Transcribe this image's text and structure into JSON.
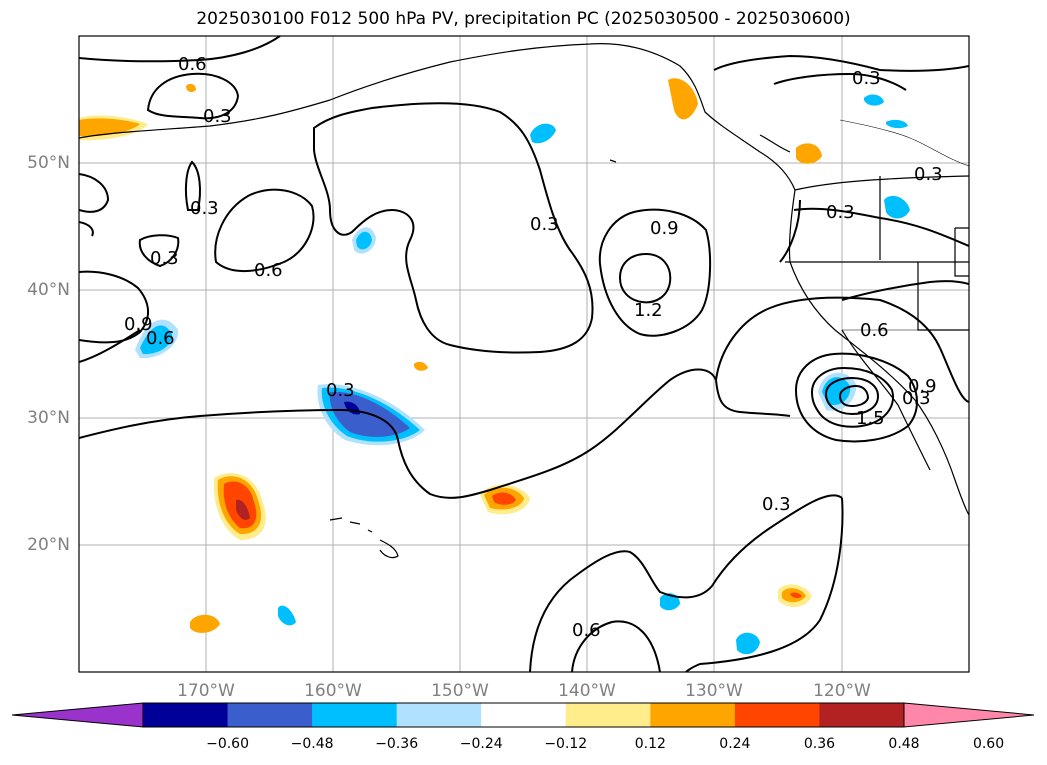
{
  "title": "2025030100 F012 500 hPa PV, precipitation PC (2025030500 - 2025030600)",
  "map": {
    "lon_range": [
      -180,
      -110
    ],
    "lat_range": [
      10,
      60
    ],
    "lat_ticks": [
      {
        "value": 20,
        "label": "20°N"
      },
      {
        "value": 30,
        "label": "30°N"
      },
      {
        "value": 40,
        "label": "40°N"
      },
      {
        "value": 50,
        "label": "50°N"
      }
    ],
    "lon_ticks": [
      {
        "value": -170,
        "label": "170°W"
      },
      {
        "value": -160,
        "label": "160°W"
      },
      {
        "value": -150,
        "label": "150°W"
      },
      {
        "value": -140,
        "label": "140°W"
      },
      {
        "value": -130,
        "label": "130°W"
      },
      {
        "value": -120,
        "label": "120°W"
      }
    ],
    "grid": true,
    "contour_labels": [
      "0.6",
      "0.3",
      "0.3",
      "0.3",
      "0.6",
      "0.9",
      "0.6",
      "0.3",
      "0.9",
      "1.2",
      "0.3",
      "0.3",
      "0.3",
      "0.6",
      "0.9",
      "1.5",
      "0.3",
      "0.3",
      "0.6",
      "0.3"
    ]
  },
  "colorbar": {
    "colors": [
      "#9933cc",
      "#000099",
      "#3a5fcd",
      "#00bfff",
      "#b0e2ff",
      "#ffffff",
      "#ffec8b",
      "#ffa500",
      "#ff4500",
      "#b22222",
      "#ff88aa"
    ],
    "tick_labels": [
      "−0.60",
      "−0.48",
      "−0.36",
      "−0.24",
      "−0.12",
      "0.12",
      "0.24",
      "0.36",
      "0.48",
      "0.60"
    ]
  }
}
